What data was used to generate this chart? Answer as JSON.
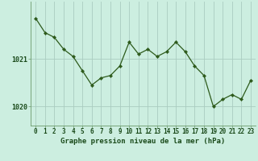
{
  "x": [
    0,
    1,
    2,
    3,
    4,
    5,
    6,
    7,
    8,
    9,
    10,
    11,
    12,
    13,
    14,
    15,
    16,
    17,
    18,
    19,
    20,
    21,
    22,
    23
  ],
  "y": [
    1021.85,
    1021.55,
    1021.45,
    1021.2,
    1021.05,
    1020.75,
    1020.45,
    1020.6,
    1020.65,
    1020.85,
    1021.35,
    1021.1,
    1021.2,
    1021.05,
    1021.15,
    1021.35,
    1021.15,
    1020.85,
    1020.65,
    1020.0,
    1020.15,
    1020.25,
    1020.15,
    1020.55
  ],
  "line_color": "#2d5a1b",
  "marker_color": "#2d5a1b",
  "bg_color": "#cceee0",
  "grid_color": "#aaccc0",
  "border_color": "#6a9a6a",
  "xlabel": "Graphe pression niveau de la mer (hPa)",
  "xlabel_color": "#1a4a1a",
  "xlabel_fontsize": 6.5,
  "tick_color": "#1a4a1a",
  "tick_fontsize": 5.5,
  "ylim": [
    1019.6,
    1022.2
  ],
  "yticks": [
    1020,
    1021
  ],
  "xlim": [
    -0.5,
    23.5
  ],
  "xticks": [
    0,
    1,
    2,
    3,
    4,
    5,
    6,
    7,
    8,
    9,
    10,
    11,
    12,
    13,
    14,
    15,
    16,
    17,
    18,
    19,
    20,
    21,
    22,
    23
  ]
}
